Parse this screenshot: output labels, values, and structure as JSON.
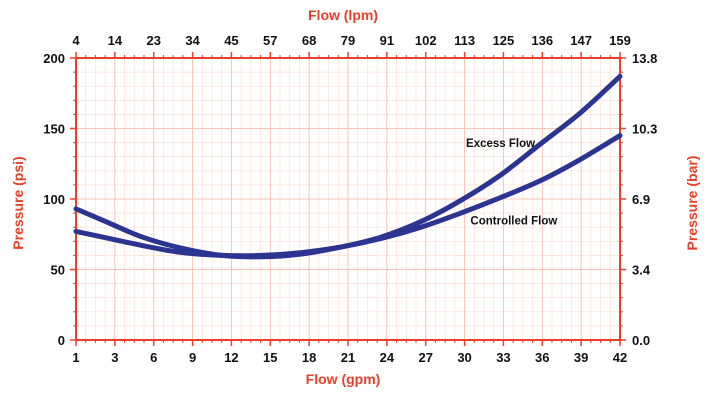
{
  "chart_data": {
    "type": "line",
    "title": "",
    "xlabel": "Flow (gpm)",
    "x2label": "Flow (lpm)",
    "ylabel": "Pressure (psi)",
    "y2label": "Pressure (bar)",
    "xlim": [
      1,
      42
    ],
    "ylim": [
      0,
      200
    ],
    "x_ticks": [
      "1",
      "3",
      "6",
      "9",
      "12",
      "15",
      "18",
      "21",
      "24",
      "27",
      "30",
      "33",
      "36",
      "39",
      "42"
    ],
    "x2_ticks": [
      "4",
      "14",
      "23",
      "34",
      "45",
      "57",
      "68",
      "79",
      "91",
      "102",
      "113",
      "125",
      "136",
      "147",
      "159"
    ],
    "y_ticks": [
      "0",
      "50",
      "100",
      "150",
      "200"
    ],
    "y2_ticks": [
      "0.0",
      "3.4",
      "6.9",
      "10.3",
      "13.8"
    ],
    "grid": true,
    "colors": {
      "axis": "#e8402a",
      "grid": "#f7c4b6",
      "minor_grid": "#fbe0d7",
      "series": "#2b3591",
      "label_red": "#e8402a",
      "tick_text": "#111111"
    },
    "annotations": [
      {
        "text": "Excess Flow",
        "x": 33,
        "y": 137
      },
      {
        "text": "Controlled Flow",
        "x": 34,
        "y": 82
      }
    ],
    "series": [
      {
        "name": "Excess Flow",
        "x": [
          1,
          3,
          6,
          9,
          12,
          15,
          18,
          21,
          24,
          27,
          30,
          33,
          36,
          39,
          42
        ],
        "values": [
          93,
          85,
          73,
          65,
          60,
          59,
          61,
          66,
          73,
          84,
          99,
          117,
          139,
          161,
          187
        ]
      },
      {
        "name": "Controlled Flow",
        "x": [
          1,
          3,
          6,
          9,
          12,
          15,
          18,
          21,
          24,
          27,
          30,
          33,
          36,
          39,
          42
        ],
        "values": [
          77,
          73,
          67,
          62,
          60,
          60,
          62,
          66,
          72,
          80,
          90,
          101,
          113,
          128,
          145
        ]
      }
    ]
  }
}
